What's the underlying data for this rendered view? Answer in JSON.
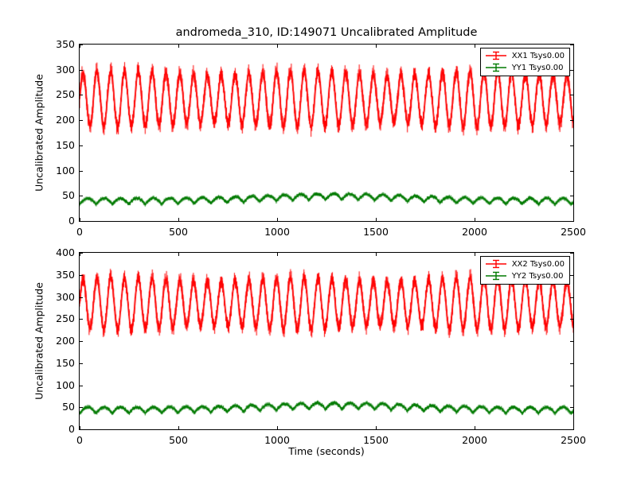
{
  "figure": {
    "title": "andromeda_310, ID:149071 Uncalibrated Amplitude",
    "background": "#ffffff"
  },
  "chart_data": [
    {
      "type": "line",
      "title": "",
      "xlabel": "",
      "ylabel": "Uncalibrated Amplitude",
      "xlim": [
        0,
        2500
      ],
      "ylim": [
        0,
        350
      ],
      "xticks": [
        0,
        500,
        1000,
        1500,
        2000,
        2500
      ],
      "yticks": [
        0,
        50,
        100,
        150,
        200,
        250,
        300,
        350
      ],
      "grid": false,
      "legend_position": "upper right",
      "legend": [
        "XX1 Tsys0.00",
        "YY1 Tsys0.00"
      ],
      "series": [
        {
          "name": "XX1 Tsys0.00",
          "color": "#ff0000",
          "style": "errorbar-plus",
          "visible_range": [
            188,
            300
          ],
          "model": {
            "kind": "sine",
            "baseline": 242,
            "amplitude": 52,
            "period_s": 70,
            "noise": 12,
            "am_depth": 0.08,
            "am_period_s": 900
          }
        },
        {
          "name": "YY1 Tsys0.00",
          "color": "#007a00",
          "style": "errorbar-plus",
          "visible_range": [
            30,
            60
          ],
          "model": {
            "kind": "scallop",
            "baseline": 33,
            "amplitude": 12,
            "period_s": 83,
            "noise": 3,
            "bump_height": 9,
            "bump_center_s": 1300,
            "bump_width_s": 500
          }
        }
      ]
    },
    {
      "type": "line",
      "title": "",
      "xlabel": "Time (seconds)",
      "ylabel": "Uncalibrated Amplitude",
      "xlim": [
        0,
        2500
      ],
      "ylim": [
        0,
        400
      ],
      "xticks": [
        0,
        500,
        1000,
        1500,
        2000,
        2500
      ],
      "yticks": [
        0,
        50,
        100,
        150,
        200,
        250,
        300,
        350,
        400
      ],
      "grid": false,
      "legend_position": "upper right",
      "legend": [
        "XX2 Tsys0.00",
        "YY2 Tsys0.00"
      ],
      "series": [
        {
          "name": "XX2 Tsys0.00",
          "color": "#ff0000",
          "style": "errorbar-plus",
          "visible_range": [
            225,
            350
          ],
          "model": {
            "kind": "sine",
            "baseline": 285,
            "amplitude": 55,
            "period_s": 70,
            "noise": 13,
            "am_depth": 0.08,
            "am_period_s": 900
          }
        },
        {
          "name": "YY2 Tsys0.00",
          "color": "#007a00",
          "style": "errorbar-plus",
          "visible_range": [
            32,
            70
          ],
          "model": {
            "kind": "scallop",
            "baseline": 36,
            "amplitude": 14,
            "period_s": 83,
            "noise": 3.5,
            "bump_height": 10,
            "bump_center_s": 1300,
            "bump_width_s": 500
          }
        }
      ]
    }
  ]
}
